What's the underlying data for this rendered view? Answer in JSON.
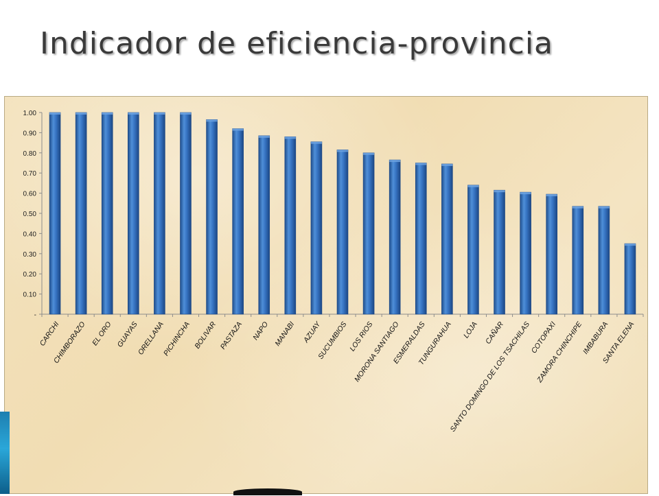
{
  "slide": {
    "title": "Indicador de eficiencia-provincia"
  },
  "colors": {
    "bar": "#2f6dbd",
    "bar_dark": "#1f4e8c",
    "bar_light": "#6fa3e0",
    "chart_bg": "#f2dfb8"
  },
  "chart_data": {
    "type": "bar",
    "title": "",
    "xlabel": "",
    "ylabel": "",
    "ylim": [
      0,
      1
    ],
    "yticks": [
      "-",
      "0.10",
      "0.20",
      "0.30",
      "0.40",
      "0.50",
      "0.60",
      "0.70",
      "0.80",
      "0.90",
      "1.00"
    ],
    "grid": false,
    "legend": "none",
    "categories": [
      "CARCHI",
      "CHIMBORAZO",
      "EL ORO",
      "GUAYAS",
      "ORELLANA",
      "PICHINCHA",
      "BOLIVAR",
      "PASTAZA",
      "NAPO",
      "MANABI",
      "AZUAY",
      "SUCUMBIOS",
      "LOS RIOS",
      "MORONA SANTIAGO",
      "ESMERALDAS",
      "TUNGURAHUA",
      "LOJA",
      "CAÑAR",
      "SANTO DOMINGO DE LOS TSACHILAS",
      "COTOPAXI",
      "ZAMORA CHINCHIPE",
      "IMBABURA",
      "SANTA ELENA"
    ],
    "values": [
      1.0,
      1.0,
      1.0,
      1.0,
      1.0,
      1.0,
      0.965,
      0.92,
      0.885,
      0.88,
      0.855,
      0.815,
      0.8,
      0.765,
      0.75,
      0.745,
      0.64,
      0.615,
      0.605,
      0.595,
      0.535,
      0.535,
      0.35
    ]
  }
}
